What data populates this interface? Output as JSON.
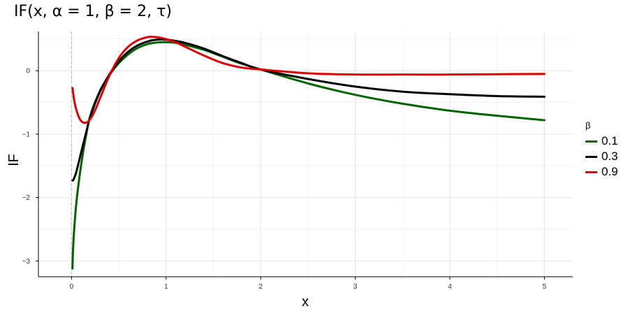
{
  "chart_data": {
    "type": "line",
    "title": "IF(x, α = 1, β = 2, τ)",
    "xlabel": "x",
    "ylabel": "IF",
    "xlim": [
      -0.35,
      5.3
    ],
    "ylim": [
      -3.25,
      0.62
    ],
    "x_ticks": [
      0,
      1,
      2,
      3,
      4,
      5
    ],
    "y_ticks": [
      -3,
      -2,
      -1,
      0
    ],
    "y_tick_labels": [
      "−3",
      "−2",
      "−1",
      "0"
    ],
    "grid": true,
    "reference_line": {
      "x": 0,
      "style": "dashed",
      "color": "#bdbdbd"
    },
    "legend": {
      "title": "β",
      "position": "right"
    },
    "series": [
      {
        "name": "0.1",
        "color": "#006400",
        "x": [
          0.01,
          0.02,
          0.05,
          0.1,
          0.15,
          0.2,
          0.3,
          0.4,
          0.5,
          0.6,
          0.7,
          0.8,
          0.9,
          1.0,
          1.1,
          1.2,
          1.4,
          1.6,
          1.8,
          2.0,
          2.5,
          3.0,
          3.5,
          4.0,
          4.5,
          5.0
        ],
        "y": [
          -3.12,
          -2.7,
          -2.1,
          -1.5,
          -1.05,
          -0.7,
          -0.32,
          -0.07,
          0.12,
          0.26,
          0.36,
          0.42,
          0.445,
          0.45,
          0.44,
          0.41,
          0.33,
          0.22,
          0.11,
          0.02,
          -0.2,
          -0.38,
          -0.52,
          -0.63,
          -0.71,
          -0.78
        ]
      },
      {
        "name": "0.3",
        "color": "#000000",
        "x": [
          0.01,
          0.02,
          0.05,
          0.1,
          0.15,
          0.2,
          0.3,
          0.4,
          0.5,
          0.6,
          0.7,
          0.8,
          0.9,
          1.0,
          1.1,
          1.2,
          1.4,
          1.6,
          1.8,
          2.0,
          2.5,
          3.0,
          3.5,
          4.0,
          4.5,
          5.0
        ],
        "y": [
          -1.73,
          -1.72,
          -1.6,
          -1.3,
          -1.0,
          -0.72,
          -0.33,
          -0.06,
          0.15,
          0.3,
          0.4,
          0.46,
          0.49,
          0.49,
          0.47,
          0.44,
          0.35,
          0.23,
          0.12,
          0.02,
          -0.13,
          -0.25,
          -0.33,
          -0.37,
          -0.4,
          -0.41
        ]
      },
      {
        "name": "0.9",
        "color": "#e00000",
        "x": [
          0.01,
          0.03,
          0.06,
          0.1,
          0.15,
          0.2,
          0.25,
          0.3,
          0.4,
          0.5,
          0.6,
          0.7,
          0.8,
          0.85,
          0.9,
          1.0,
          1.1,
          1.2,
          1.4,
          1.6,
          1.8,
          2.0,
          2.5,
          3.0,
          3.5,
          4.0,
          4.5,
          5.0
        ],
        "y": [
          -0.27,
          -0.48,
          -0.66,
          -0.79,
          -0.82,
          -0.76,
          -0.62,
          -0.44,
          -0.08,
          0.2,
          0.38,
          0.48,
          0.53,
          0.535,
          0.53,
          0.5,
          0.45,
          0.38,
          0.24,
          0.12,
          0.05,
          0.02,
          -0.04,
          -0.06,
          -0.06,
          -0.06,
          -0.055,
          -0.05
        ]
      }
    ]
  }
}
